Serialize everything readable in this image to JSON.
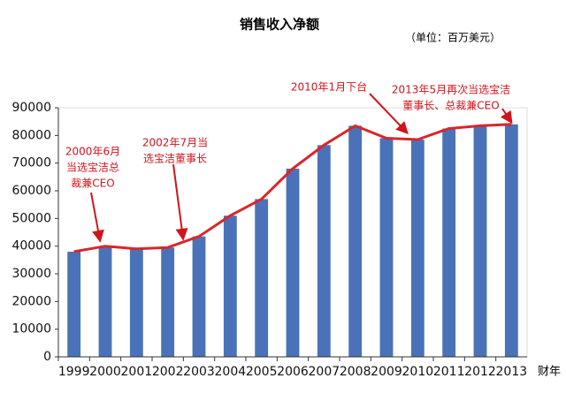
{
  "chart_data": {
    "type": "bar",
    "title": "销售收入净额",
    "unit": "（单位：百万美元）",
    "x_label": "财年",
    "categories": [
      "1999",
      "2000",
      "2001",
      "2002",
      "2003",
      "2004",
      "2005",
      "2006",
      "2007",
      "2008",
      "2009",
      "2010",
      "2011",
      "2012",
      "2013"
    ],
    "values": [
      38000,
      40000,
      39000,
      39500,
      43500,
      51000,
      57000,
      68000,
      76500,
      83500,
      79000,
      78500,
      82500,
      83500,
      84000
    ],
    "color": "#4a72b8",
    "line_overlay": true,
    "line_color": "#d9262c",
    "ylim": [
      0,
      90000
    ],
    "yticks": [
      0,
      10000,
      20000,
      30000,
      40000,
      50000,
      60000,
      70000,
      80000,
      90000
    ],
    "annotations": [
      {
        "category": "2000",
        "lines": [
          "2000年6月",
          "当选宝洁总",
          "裁兼CEO"
        ]
      },
      {
        "category": "2002",
        "lines": [
          "2002年7月当",
          "选宝洁董事长"
        ]
      },
      {
        "category": "2010",
        "lines": [
          "2010年1月下台"
        ]
      },
      {
        "category": "2013",
        "lines": [
          "2013年5月再次当选宝洁",
          "董事长、总裁兼CEO"
        ]
      }
    ]
  }
}
